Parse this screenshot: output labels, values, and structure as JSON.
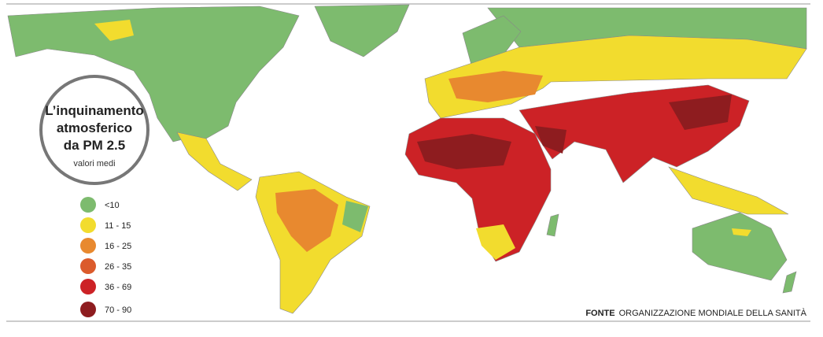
{
  "title": [
    "L’inquinamento",
    "atmosferico",
    "da PM 2.5"
  ],
  "subtitle": "valori medi",
  "legend": [
    {
      "label": "<10",
      "color": "#7dbb6e"
    },
    {
      "label": "11 - 15",
      "color": "#f2dc2e"
    },
    {
      "label": "16 - 25",
      "color": "#e8892f"
    },
    {
      "label": "26 - 35",
      "color": "#db5b2c"
    },
    {
      "label": "36 - 69",
      "color": "#cc2226"
    },
    {
      "label": "70 - 90",
      "color": "#8e1c1f"
    }
  ],
  "source": {
    "label": "FONTE",
    "text": "ORGANIZZAZIONE MONDIALE DELLA SANITÀ"
  }
}
